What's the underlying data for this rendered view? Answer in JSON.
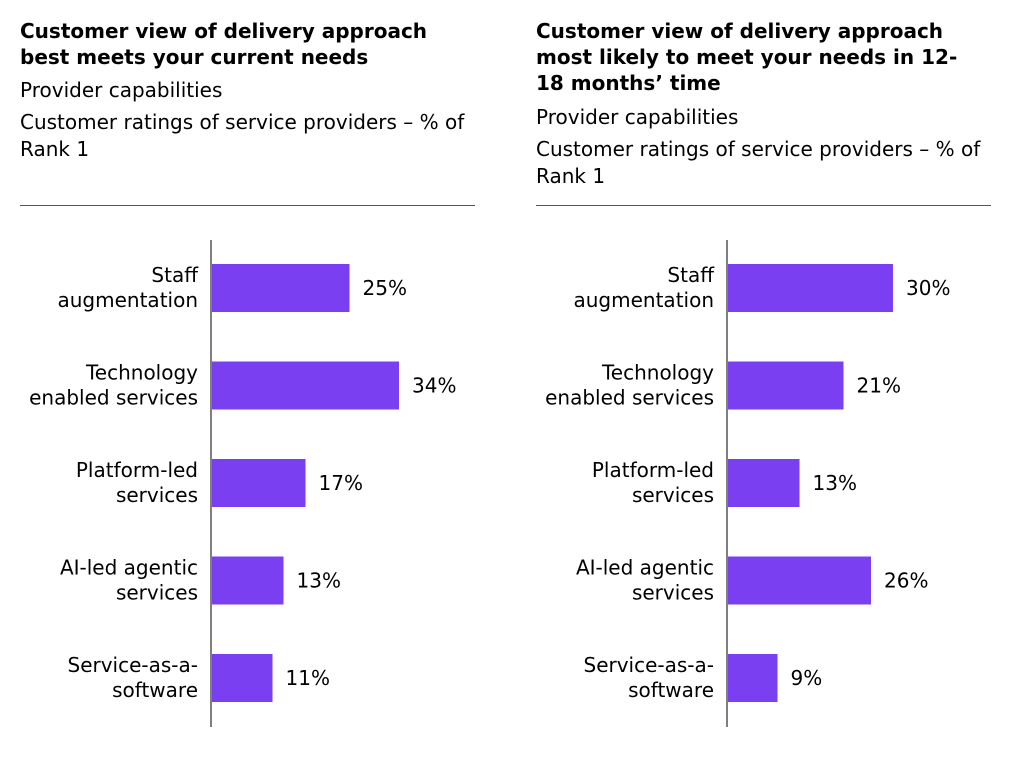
{
  "colors": {
    "bar": "#7a3ff0",
    "axis": "#555555",
    "rule": "#555555"
  },
  "chart_data": [
    {
      "type": "bar",
      "orientation": "horizontal",
      "title": "Customer view of delivery approach best meets your current needs",
      "subtitle_1": "Provider capabilities",
      "subtitle_2": "Customer ratings of service providers – % of Rank 1",
      "categories": [
        "Staff augmentation",
        "Technology enabled services",
        "Platform-led services",
        "AI-led agentic services",
        "Service-as-a-software"
      ],
      "category_lines": [
        [
          "Staff",
          "augmentation"
        ],
        [
          "Technology",
          "enabled services"
        ],
        [
          "Platform-led",
          "services"
        ],
        [
          "AI-led agentic",
          "services"
        ],
        [
          "Service-as-a-",
          "software"
        ]
      ],
      "values": [
        25,
        34,
        17,
        13,
        11
      ],
      "value_labels": [
        "25%",
        "34%",
        "17%",
        "13%",
        "11%"
      ],
      "xlim": [
        0,
        40
      ],
      "grid": false
    },
    {
      "type": "bar",
      "orientation": "horizontal",
      "title": "Customer view of delivery approach most likely to meet your needs in 12-18 months’ time",
      "subtitle_1": "Provider capabilities",
      "subtitle_2": "Customer ratings of service providers – % of Rank 1",
      "categories": [
        "Staff augmentation",
        "Technology enabled services",
        "Platform-led services",
        "AI-led agentic services",
        "Service-as-a-software"
      ],
      "category_lines": [
        [
          "Staff",
          "augmentation"
        ],
        [
          "Technology",
          "enabled services"
        ],
        [
          "Platform-led",
          "services"
        ],
        [
          "AI-led agentic",
          "services"
        ],
        [
          "Service-as-a-",
          "software"
        ]
      ],
      "values": [
        30,
        21,
        13,
        26,
        9
      ],
      "value_labels": [
        "30%",
        "21%",
        "13%",
        "26%",
        "9%"
      ],
      "xlim": [
        0,
        40
      ],
      "grid": false
    }
  ]
}
